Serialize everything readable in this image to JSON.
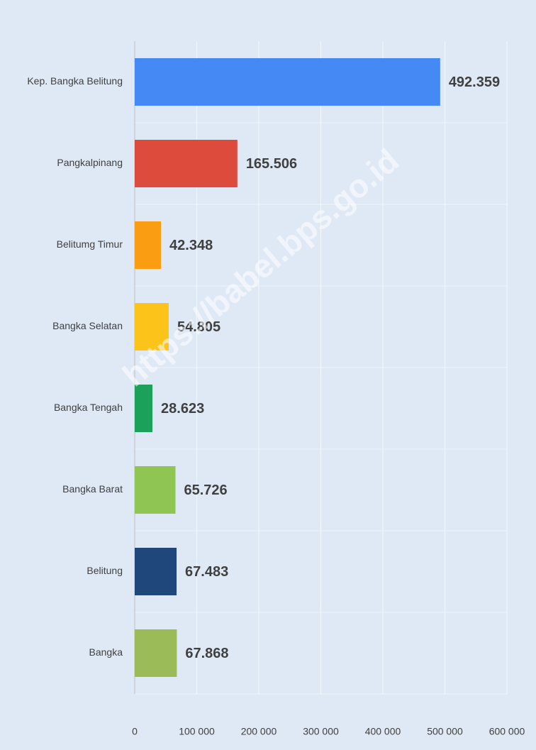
{
  "chart_data": {
    "type": "hbar",
    "watermark": "https://babel.bps.go.id",
    "categories": [
      "Kep. Bangka Belitung",
      "Pangkalpinang",
      "Belitumg Timur",
      "Bangka Selatan",
      "Bangka Tengah",
      "Bangka Barat",
      "Belitung",
      "Bangka"
    ],
    "values": [
      492359,
      165506,
      42348,
      54805,
      28623,
      65726,
      67483,
      67868
    ],
    "value_labels": [
      "492.359",
      "165.506",
      "42.348",
      "54.805",
      "28.623",
      "65.726",
      "67.483",
      "67.868"
    ],
    "colors": [
      "#4589f5",
      "#dd4b3d",
      "#fb9d12",
      "#fcc41b",
      "#1ba15a",
      "#8fc552",
      "#1f477b",
      "#9bbb59"
    ],
    "xlim": [
      0,
      600000
    ],
    "xticks": [
      0,
      {
        "value": 100000,
        "label": "100 000"
      },
      {
        "value": 200000,
        "label": "200 000"
      },
      {
        "value": 300000,
        "label": "300 000"
      },
      {
        "value": 400000,
        "label": "400 000"
      },
      {
        "value": 500000,
        "label": "500 000"
      },
      {
        "value": 600000,
        "label": "600 000"
      }
    ],
    "grid": true
  }
}
